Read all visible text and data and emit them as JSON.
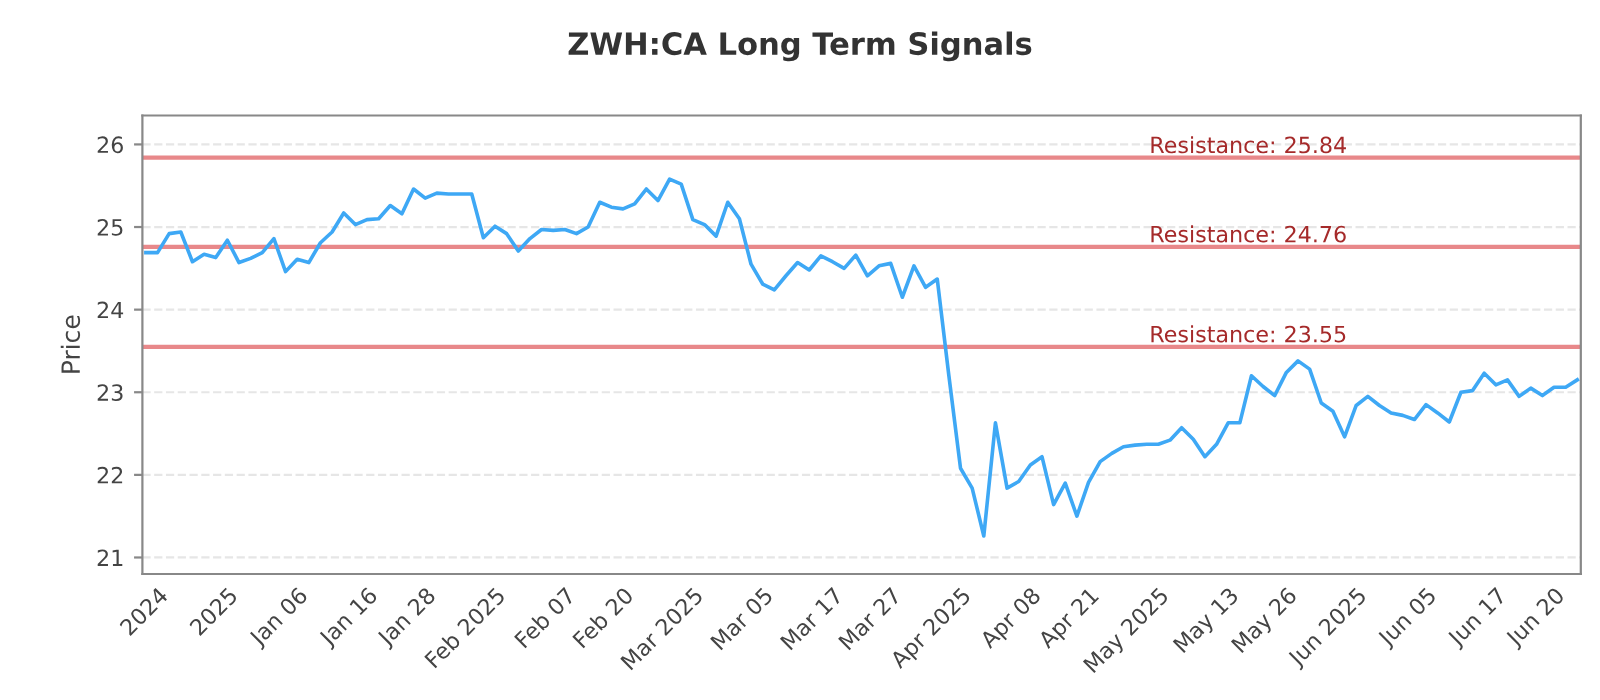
{
  "chart_data": {
    "type": "line",
    "title": "ZWH:CA Long Term Signals",
    "ylabel": "Price",
    "categories": [
      null,
      "2024",
      null,
      null,
      null,
      null,
      null,
      "2025",
      null,
      null,
      null,
      null,
      null,
      "Jan 06",
      null,
      null,
      null,
      null,
      null,
      "Jan 16",
      null,
      null,
      null,
      null,
      "Jan 28",
      null,
      null,
      null,
      null,
      null,
      "Feb 2025",
      null,
      null,
      null,
      null,
      null,
      "Feb 07",
      null,
      null,
      null,
      null,
      "Feb 20",
      null,
      null,
      null,
      null,
      null,
      "Mar 2025",
      null,
      null,
      null,
      null,
      null,
      "Mar 05",
      null,
      null,
      null,
      null,
      null,
      "Mar 17",
      null,
      null,
      null,
      null,
      "Mar 27",
      null,
      null,
      null,
      null,
      null,
      "Apr 2025",
      null,
      null,
      null,
      null,
      null,
      "Apr 08",
      null,
      null,
      null,
      null,
      "Apr 21",
      null,
      null,
      null,
      null,
      null,
      "May 2025",
      null,
      null,
      null,
      null,
      null,
      "May 13",
      null,
      null,
      null,
      null,
      "May 26",
      null,
      null,
      null,
      null,
      null,
      "Jun 2025",
      null,
      null,
      null,
      null,
      null,
      "Jun 05",
      null,
      null,
      null,
      null,
      null,
      "Jun 17",
      null,
      null,
      null,
      null,
      "Jun 20",
      null,
      null
    ],
    "series": [
      {
        "color": "#3ea8f5",
        "values": [
          24.69,
          24.69,
          24.92,
          24.94,
          24.58,
          24.67,
          24.63,
          24.84,
          24.57,
          24.62,
          24.69,
          24.86,
          24.46,
          24.61,
          24.57,
          24.81,
          24.94,
          25.17,
          25.03,
          25.09,
          25.1,
          25.26,
          25.16,
          25.46,
          25.35,
          25.41,
          25.4,
          25.4,
          25.4,
          24.87,
          25.01,
          24.92,
          24.71,
          24.86,
          24.97,
          24.96,
          24.97,
          24.92,
          25.0,
          25.3,
          25.24,
          25.22,
          25.28,
          25.46,
          25.32,
          25.58,
          25.52,
          25.09,
          25.03,
          24.89,
          25.3,
          25.1,
          24.55,
          24.31,
          24.24,
          24.41,
          24.57,
          24.48,
          24.65,
          24.58,
          24.5,
          24.66,
          24.41,
          24.53,
          24.56,
          24.15,
          24.53,
          24.27,
          24.37,
          23.2,
          22.08,
          21.84,
          21.26,
          22.63,
          21.84,
          21.92,
          22.12,
          22.22,
          21.64,
          21.9,
          21.5,
          21.91,
          22.16,
          22.26,
          22.34,
          22.36,
          22.37,
          22.37,
          22.42,
          22.57,
          22.43,
          22.22,
          22.37,
          22.63,
          22.63,
          23.2,
          23.07,
          22.96,
          23.24,
          23.38,
          23.28,
          22.87,
          22.77,
          22.46,
          22.84,
          22.95,
          22.84,
          22.75,
          22.72,
          22.67,
          22.85,
          22.75,
          22.64,
          23.0,
          23.02,
          23.23,
          23.09,
          23.15,
          22.95,
          23.05,
          22.96,
          23.06,
          23.06,
          23.15
        ]
      }
    ],
    "ylim": [
      20.8,
      26.35
    ],
    "yticks": [
      21,
      22,
      23,
      24,
      25,
      26
    ],
    "grid": "y",
    "marker": "none",
    "line_style": "solid",
    "ref_lines": [
      {
        "axis": "y",
        "value": 25.84,
        "label": "Resistance: 25.84",
        "color": "#e8888a"
      },
      {
        "axis": "y",
        "value": 24.76,
        "label": "Resistance: 24.76",
        "color": "#e8888a"
      },
      {
        "axis": "y",
        "value": 23.55,
        "label": "Resistance: 23.55",
        "color": "#e8888a"
      }
    ]
  }
}
